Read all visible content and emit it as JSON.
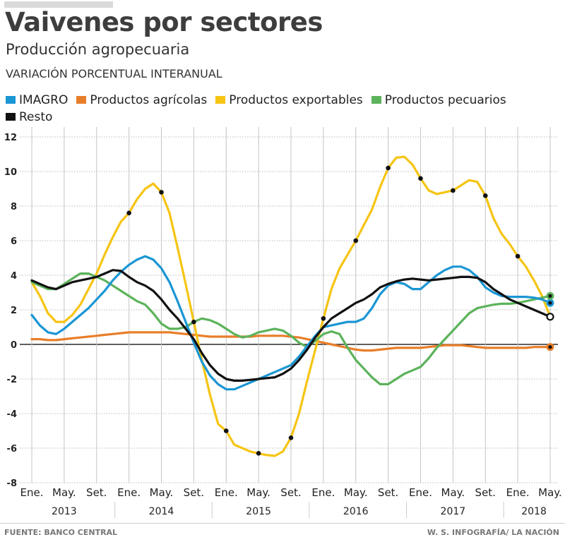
{
  "header": {
    "title": "Vaivenes por sectores",
    "subtitle": "Producción agropecuaria",
    "unit_label": "VARIACIÓN PORCENTUAL INTERANUAL"
  },
  "footer": {
    "source": "FUENTE: BANCO CENTRAL",
    "credit": "W. S. INFOGRAFÍA/ LA NACIÓN"
  },
  "chart_data": {
    "type": "line",
    "title": "Vaivenes por sectores",
    "subtitle": "Producción agropecuaria",
    "ylabel": "VARIACIÓN PORCENTUAL INTERANUAL",
    "xlabel": "",
    "ylim": [
      -8,
      12
    ],
    "yticks": [
      12,
      10,
      8,
      6,
      4,
      2,
      0,
      -2,
      -4,
      -6,
      -8
    ],
    "grid": true,
    "legend_position": "top",
    "x_start": "Ene. 2013",
    "x_end": "May. 2018",
    "x_unit": "month",
    "month_tick_labels": [
      "Ene.",
      "May.",
      "Set.",
      "Ene.",
      "May.",
      "Set.",
      "Ene.",
      "May.",
      "Set.",
      "Ene.",
      "May.",
      "Set.",
      "Ene.",
      "May.",
      "Set.",
      "Ene.",
      "May."
    ],
    "years": [
      "2013",
      "2014",
      "2015",
      "2016",
      "2017",
      "2018"
    ],
    "series": [
      {
        "name": "IMAGRO",
        "color": "#1a96d4",
        "values": [
          1.7,
          1.1,
          0.7,
          0.6,
          0.9,
          1.3,
          1.7,
          2.1,
          2.6,
          3.1,
          3.7,
          4.2,
          4.6,
          4.9,
          5.1,
          4.9,
          4.4,
          3.6,
          2.5,
          1.3,
          0.1,
          -1.0,
          -1.8,
          -2.3,
          -2.6,
          -2.6,
          -2.4,
          -2.2,
          -2.0,
          -1.8,
          -1.6,
          -1.4,
          -1.2,
          -0.7,
          -0.1,
          0.5,
          1.0,
          1.1,
          1.2,
          1.3,
          1.3,
          1.5,
          2.1,
          2.9,
          3.4,
          3.6,
          3.5,
          3.2,
          3.2,
          3.6,
          4.0,
          4.3,
          4.5,
          4.5,
          4.3,
          3.9,
          3.3,
          3.0,
          2.8,
          2.75,
          2.75,
          2.75,
          2.7,
          2.6,
          2.4
        ]
      },
      {
        "name": "Productos agrícolas",
        "color": "#e87e2a",
        "values": [
          0.3,
          0.3,
          0.25,
          0.25,
          0.3,
          0.35,
          0.4,
          0.45,
          0.5,
          0.55,
          0.6,
          0.65,
          0.7,
          0.7,
          0.7,
          0.7,
          0.7,
          0.7,
          0.65,
          0.6,
          0.55,
          0.5,
          0.45,
          0.45,
          0.45,
          0.45,
          0.45,
          0.45,
          0.5,
          0.5,
          0.5,
          0.5,
          0.45,
          0.4,
          0.3,
          0.2,
          0.1,
          0.0,
          -0.1,
          -0.2,
          -0.3,
          -0.35,
          -0.35,
          -0.3,
          -0.25,
          -0.2,
          -0.2,
          -0.2,
          -0.2,
          -0.15,
          -0.1,
          -0.05,
          -0.05,
          -0.05,
          -0.1,
          -0.15,
          -0.2,
          -0.2,
          -0.2,
          -0.2,
          -0.2,
          -0.2,
          -0.15,
          -0.15,
          -0.15
        ]
      },
      {
        "name": "Productos exportables",
        "color": "#f6c413",
        "values": [
          3.6,
          2.8,
          1.8,
          1.3,
          1.3,
          1.7,
          2.3,
          3.2,
          4.1,
          5.2,
          6.2,
          7.1,
          7.6,
          8.4,
          9.0,
          9.3,
          8.8,
          7.6,
          5.6,
          3.5,
          1.3,
          -0.9,
          -2.9,
          -4.6,
          -5.0,
          -5.8,
          -6.0,
          -6.2,
          -6.3,
          -6.4,
          -6.45,
          -6.2,
          -5.4,
          -4.0,
          -2.1,
          -0.3,
          1.5,
          3.2,
          4.4,
          5.2,
          6.0,
          6.9,
          7.8,
          9.1,
          10.2,
          10.8,
          10.85,
          10.4,
          9.6,
          8.9,
          8.7,
          8.8,
          8.9,
          9.2,
          9.5,
          9.4,
          8.6,
          7.3,
          6.4,
          5.8,
          5.1,
          4.5,
          3.7,
          2.8,
          1.6
        ]
      },
      {
        "name": "Productos pecuarios",
        "color": "#5cb35b",
        "values": [
          3.6,
          3.4,
          3.2,
          3.2,
          3.5,
          3.8,
          4.1,
          4.1,
          3.9,
          3.7,
          3.4,
          3.1,
          2.8,
          2.5,
          2.3,
          1.8,
          1.2,
          0.9,
          0.9,
          1.0,
          1.3,
          1.5,
          1.4,
          1.2,
          0.9,
          0.6,
          0.4,
          0.5,
          0.7,
          0.8,
          0.9,
          0.8,
          0.5,
          0.1,
          -0.15,
          0.2,
          0.6,
          0.75,
          0.6,
          -0.2,
          -0.9,
          -1.4,
          -1.9,
          -2.3,
          -2.3,
          -2.0,
          -1.7,
          -1.5,
          -1.3,
          -0.8,
          -0.2,
          0.3,
          0.8,
          1.3,
          1.8,
          2.1,
          2.2,
          2.3,
          2.35,
          2.35,
          2.4,
          2.5,
          2.6,
          2.7,
          2.8
        ]
      },
      {
        "name": "Resto",
        "color": "#111111",
        "values": [
          3.7,
          3.5,
          3.3,
          3.2,
          3.4,
          3.6,
          3.7,
          3.8,
          3.9,
          4.1,
          4.3,
          4.25,
          3.9,
          3.6,
          3.4,
          3.1,
          2.6,
          2.0,
          1.5,
          0.9,
          0.3,
          -0.5,
          -1.2,
          -1.7,
          -2.0,
          -2.1,
          -2.1,
          -2.05,
          -2.0,
          -1.95,
          -1.9,
          -1.7,
          -1.4,
          -0.9,
          -0.3,
          0.4,
          1.0,
          1.5,
          1.8,
          2.1,
          2.4,
          2.6,
          2.9,
          3.3,
          3.5,
          3.65,
          3.75,
          3.8,
          3.75,
          3.7,
          3.75,
          3.8,
          3.85,
          3.9,
          3.9,
          3.85,
          3.6,
          3.2,
          2.9,
          2.6,
          2.4,
          2.2,
          2.0,
          1.8,
          1.6
        ]
      }
    ],
    "markers": {
      "series": "Productos exportables",
      "note": "black dots at each Ene./May./Set. tick on the exportables line; end-point circles on each series at May. 2018"
    }
  }
}
